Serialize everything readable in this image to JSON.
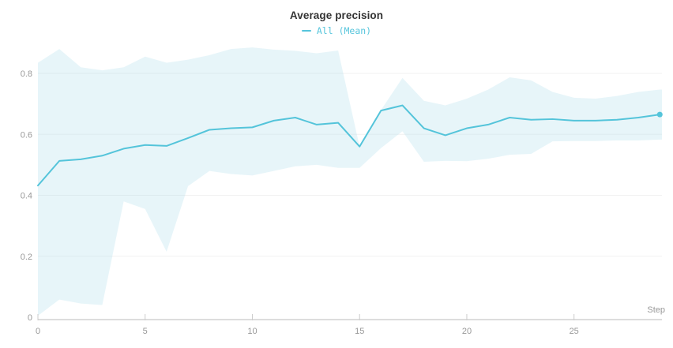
{
  "header": {
    "title": "Average precision",
    "legend_label": "All (Mean)"
  },
  "colors": {
    "line": "#54c4da",
    "band_fill": "#aadcea",
    "band_effective": "#e7f5f9",
    "grid": "#f1f1f1",
    "axis": "#dddddd",
    "tick": "#cccccc",
    "tick_label": "#999999",
    "title_text": "#333333",
    "legend_text": "#56c5dc"
  },
  "chart_data": {
    "type": "line",
    "title": "Average precision",
    "xlabel": "Step",
    "ylabel": "",
    "legend_entries": [
      "All (Mean)"
    ],
    "legend_position": "top-center",
    "grid": "horizontal-only",
    "xlim": [
      0,
      29.1
    ],
    "ylim": [
      0,
      0.9
    ],
    "x_ticks": [
      {
        "label": "0",
        "value": 0
      },
      {
        "label": "5",
        "value": 5
      },
      {
        "label": "10",
        "value": 10
      },
      {
        "label": "15",
        "value": 15
      },
      {
        "label": "20",
        "value": 20
      },
      {
        "label": "25",
        "value": 25
      }
    ],
    "y_ticks": [
      {
        "label": "0",
        "value": 0
      },
      {
        "label": "0.2",
        "value": 0.2
      },
      {
        "label": "0.4",
        "value": 0.4
      },
      {
        "label": "0.6",
        "value": 0.6
      },
      {
        "label": "0.8",
        "value": 0.8
      }
    ],
    "series": [
      {
        "name": "All (Mean)",
        "x": [
          0,
          1,
          2,
          3,
          4,
          5,
          6,
          7,
          8,
          9,
          10,
          11,
          12,
          13,
          14,
          15,
          16,
          17,
          18,
          19,
          20,
          21,
          22,
          23,
          24,
          25,
          26,
          27,
          28,
          29
        ],
        "values": [
          0.432,
          0.513,
          0.518,
          0.53,
          0.553,
          0.565,
          0.562,
          0.588,
          0.615,
          0.62,
          0.623,
          0.645,
          0.655,
          0.632,
          0.638,
          0.56,
          0.678,
          0.695,
          0.62,
          0.597,
          0.62,
          0.632,
          0.655,
          0.648,
          0.65,
          0.645,
          0.645,
          0.648,
          0.655,
          0.665
        ],
        "band_lower": [
          0.005,
          0.058,
          0.045,
          0.04,
          0.38,
          0.355,
          0.215,
          0.43,
          0.48,
          0.47,
          0.465,
          0.48,
          0.495,
          0.5,
          0.49,
          0.49,
          0.555,
          0.61,
          0.51,
          0.513,
          0.512,
          0.52,
          0.533,
          0.536,
          0.577,
          0.578,
          0.578,
          0.58,
          0.58,
          0.583
        ],
        "band_upper": [
          0.835,
          0.88,
          0.82,
          0.81,
          0.82,
          0.855,
          0.835,
          0.845,
          0.86,
          0.88,
          0.885,
          0.878,
          0.874,
          0.866,
          0.875,
          0.56,
          0.68,
          0.785,
          0.71,
          0.695,
          0.717,
          0.747,
          0.787,
          0.777,
          0.739,
          0.72,
          0.717,
          0.726,
          0.739,
          0.747
        ],
        "endpoint_marker": true
      }
    ]
  }
}
